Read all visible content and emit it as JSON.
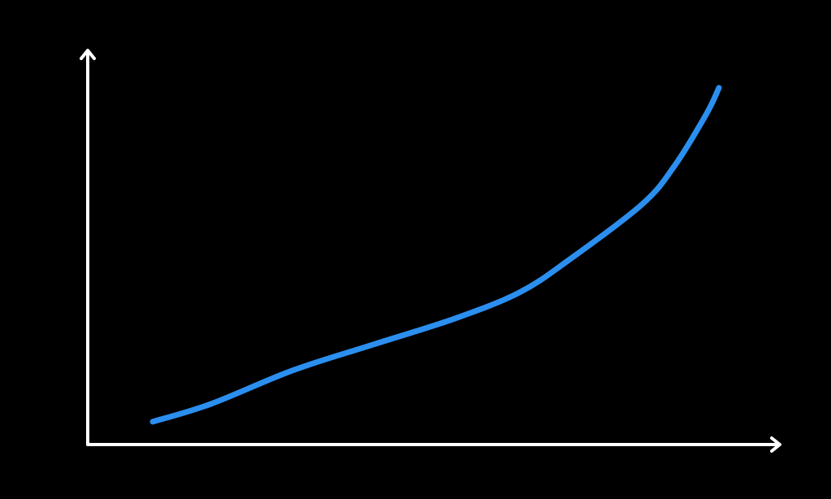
{
  "chart_data": {
    "type": "line",
    "title": "",
    "xlabel": "",
    "ylabel": "",
    "xlim": [
      0,
      100
    ],
    "ylim": [
      0,
      100
    ],
    "grid": false,
    "background_color": "#000000",
    "axis_color": "#ffffff",
    "series": [
      {
        "color": "#2b8ff0",
        "x": [
          9.4,
          17.8,
          29.6,
          41.3,
          53.1,
          62.4,
          69.5,
          80.0,
          84.7,
          89.4,
          91.2
        ],
        "y": [
          5.8,
          10.3,
          18.8,
          25.4,
          32.0,
          38.6,
          46.8,
          60.8,
          70.5,
          83.9,
          90.5
        ]
      }
    ]
  }
}
